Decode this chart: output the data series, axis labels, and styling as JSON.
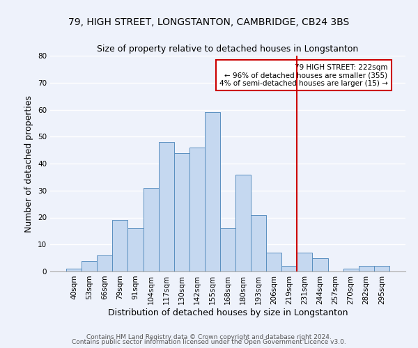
{
  "title": "79, HIGH STREET, LONGSTANTON, CAMBRIDGE, CB24 3BS",
  "subtitle": "Size of property relative to detached houses in Longstanton",
  "xlabel": "Distribution of detached houses by size in Longstanton",
  "ylabel": "Number of detached properties",
  "categories": [
    "40sqm",
    "53sqm",
    "66sqm",
    "79sqm",
    "91sqm",
    "104sqm",
    "117sqm",
    "130sqm",
    "142sqm",
    "155sqm",
    "168sqm",
    "180sqm",
    "193sqm",
    "206sqm",
    "219sqm",
    "231sqm",
    "244sqm",
    "257sqm",
    "270sqm",
    "282sqm",
    "295sqm"
  ],
  "values": [
    1,
    4,
    6,
    19,
    16,
    31,
    48,
    44,
    46,
    59,
    16,
    36,
    21,
    7,
    2,
    7,
    5,
    0,
    1,
    2,
    2
  ],
  "bar_color": "#c5d8f0",
  "bar_edge_color": "#5a8fc0",
  "ylim": [
    0,
    80
  ],
  "yticks": [
    0,
    10,
    20,
    30,
    40,
    50,
    60,
    70,
    80
  ],
  "vline_index": 14.5,
  "vline_color": "#cc0000",
  "annotation_title": "79 HIGH STREET: 222sqm",
  "annotation_line1": "← 96% of detached houses are smaller (355)",
  "annotation_line2": "4% of semi-detached houses are larger (15) →",
  "annotation_box_color": "#ffffff",
  "annotation_box_edge": "#cc0000",
  "footer1": "Contains HM Land Registry data © Crown copyright and database right 2024.",
  "footer2": "Contains public sector information licensed under the Open Government Licence v3.0.",
  "background_color": "#eef2fb",
  "grid_color": "#ffffff",
  "title_fontsize": 10,
  "subtitle_fontsize": 9,
  "axis_label_fontsize": 9,
  "tick_fontsize": 7.5,
  "footer_fontsize": 6.5
}
